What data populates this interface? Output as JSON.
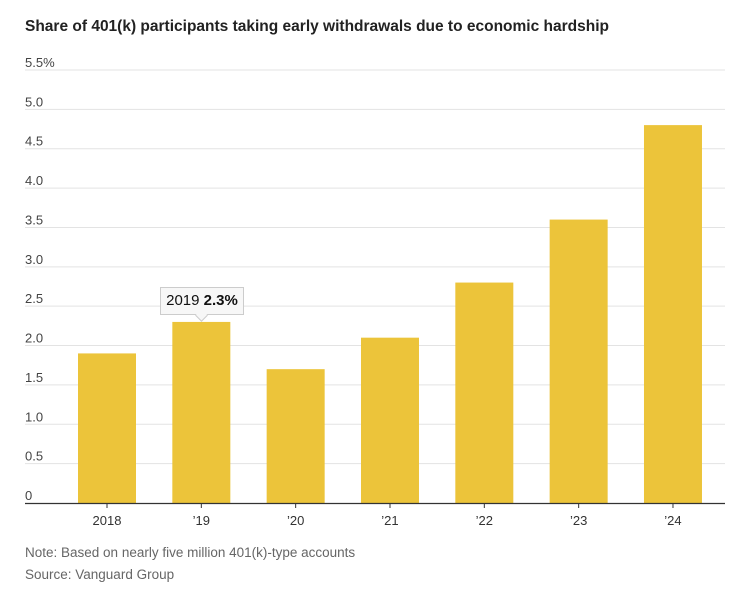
{
  "chart_data": {
    "type": "bar",
    "title": "Share of 401(k) participants taking early withdrawals due to economic hardship",
    "categories": [
      "2018",
      "’19",
      "’20",
      "’21",
      "’22",
      "’23",
      "’24"
    ],
    "values": [
      1.9,
      2.3,
      1.7,
      2.1,
      2.8,
      3.6,
      4.8
    ],
    "ylim": [
      0,
      5.5
    ],
    "yticks": [
      "0",
      "0.5",
      "1.0",
      "1.5",
      "2.0",
      "2.5",
      "3.0",
      "3.5",
      "4.0",
      "4.5",
      "5.0",
      "5.5%"
    ],
    "xlabel": "",
    "ylabel": "",
    "grid": true,
    "bar_color": "#ecc43a",
    "tooltip": {
      "year": "2019",
      "value": "2.3%"
    }
  },
  "note": "Note: Based on nearly five million 401(k)-type accounts",
  "source": "Source: Vanguard Group"
}
